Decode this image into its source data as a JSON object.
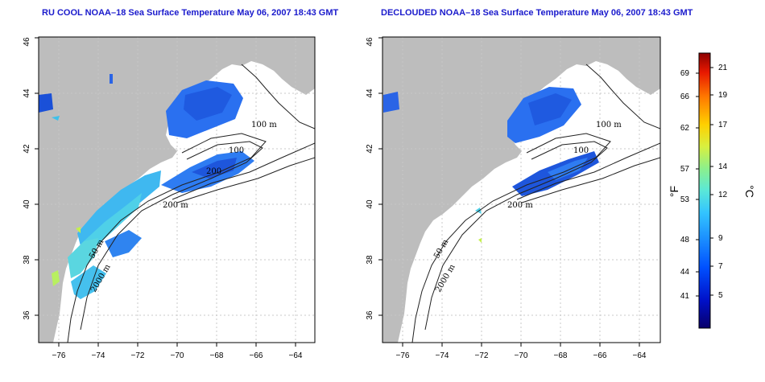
{
  "panels": [
    {
      "title": "RU COOL NOAA–18 Sea Surface Temperature May 06, 2007 18:43 GMT",
      "contour_labels": [
        "100 m",
        "100",
        "200",
        "200 m",
        "50 m",
        "2000 m"
      ]
    },
    {
      "title": "DECLOUDED NOAA–18 Sea Surface Temperature May 06, 2007 18:43 GMT",
      "contour_labels": [
        "100 m",
        "100",
        "200 m",
        "50 m",
        "2000 m"
      ]
    }
  ],
  "axes": {
    "x_ticks": [
      "−76",
      "−74",
      "−72",
      "−70",
      "−68",
      "−66",
      "−64"
    ],
    "y_ticks": [
      "36",
      "38",
      "40",
      "42",
      "44",
      "46"
    ],
    "xlim": [
      -77,
      -63
    ],
    "ylim": [
      35,
      46
    ],
    "grid": true
  },
  "colorbar": {
    "fahrenheit_ticks": [
      "69",
      "66",
      "62",
      "57",
      "53",
      "48",
      "44",
      "41"
    ],
    "celsius_ticks": [
      "21",
      "19",
      "17",
      "14",
      "12",
      "9",
      "7",
      "5"
    ],
    "left_unit": "°F",
    "right_unit": "°C",
    "colors": [
      "#08006a",
      "#0010c8",
      "#0050ff",
      "#1a8cff",
      "#33c4ff",
      "#5ae8d8",
      "#8cf08c",
      "#d8f040",
      "#ffd000",
      "#ff7a00",
      "#e81800",
      "#8c0000"
    ]
  },
  "colors": {
    "land": "#bdbdbd",
    "ocean": "#ffffff",
    "title": "#1a1acc",
    "grid": "#c8c8c8"
  }
}
